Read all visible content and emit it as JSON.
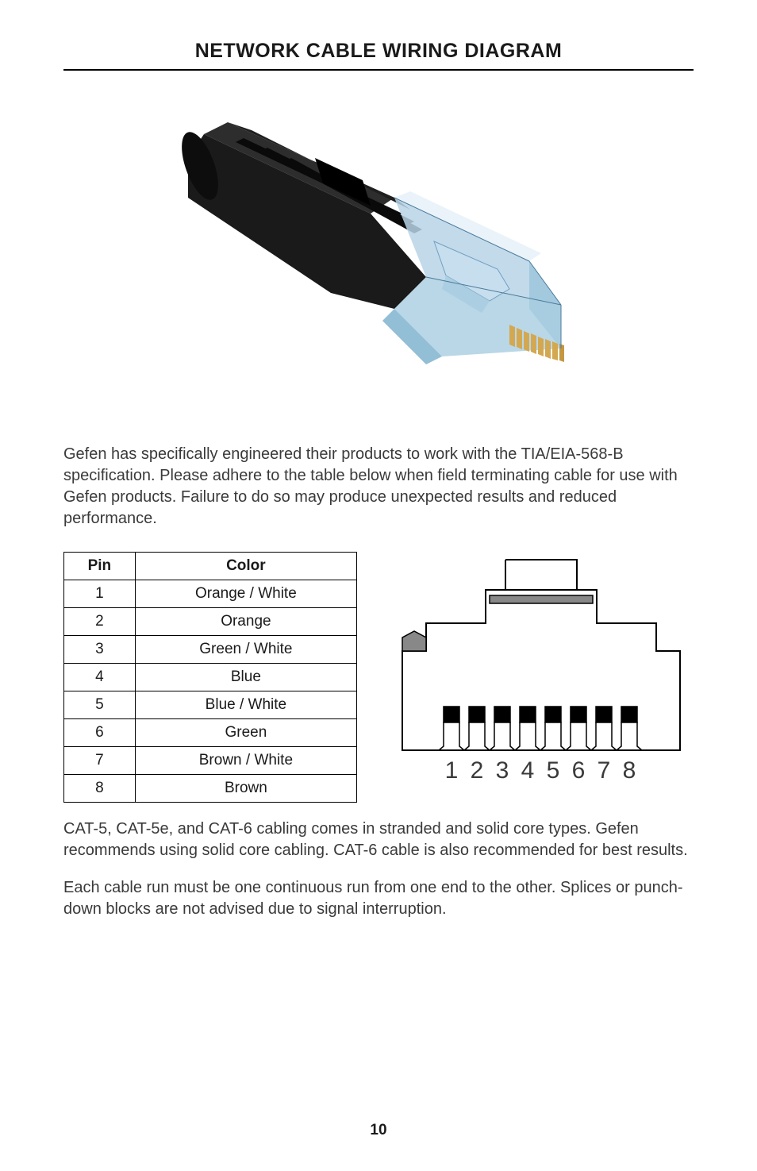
{
  "title": "NETWORK CABLE WIRING DIAGRAM",
  "intro_text": "Gefen has specifically engineered their products to work with the TIA/EIA-568-B specification.  Please adhere to the table below when field terminating cable for use with Gefen products. Failure to do so may produce unexpected results and reduced performance.",
  "pin_table": {
    "headers": {
      "pin": "Pin",
      "color": "Color"
    },
    "rows": [
      {
        "pin": "1",
        "color": "Orange / White"
      },
      {
        "pin": "2",
        "color": "Orange"
      },
      {
        "pin": "3",
        "color": "Green / White"
      },
      {
        "pin": "4",
        "color": "Blue"
      },
      {
        "pin": "5",
        "color": "Blue / White"
      },
      {
        "pin": "6",
        "color": "Green"
      },
      {
        "pin": "7",
        "color": "Brown / White"
      },
      {
        "pin": "8",
        "color": "Brown"
      }
    ]
  },
  "jack_labels": [
    "1",
    "2",
    "3",
    "4",
    "5",
    "6",
    "7",
    "8"
  ],
  "footer_text1": "CAT-5, CAT-5e, and CAT-6 cabling comes in stranded and solid core types. Gefen recommends using solid core cabling. CAT-6 cable is also recommended for best results.",
  "footer_text2": "Each cable run must be one continuous run from one end to the other. Splices or punch-down blocks are not advised due to signal interruption.",
  "page_number": "10",
  "connector_diagram": {
    "type": "3d-illustration",
    "boot_color": "#1a1a1a",
    "boot_shadow": "#2d2d2d",
    "plug_body_color": "#b8d4e8",
    "plug_highlight": "#e8f2f8",
    "plug_edge": "#4a7a9a",
    "pin_colors": [
      "#d4a850",
      "#d4a850",
      "#d4a850",
      "#d4a850",
      "#d4a850",
      "#d4a850",
      "#d4a850",
      "#d4a850"
    ]
  },
  "jack_diagram": {
    "type": "line-drawing",
    "outline_color": "#000000",
    "outline_width": 2,
    "fill": "#ffffff",
    "pin_fill": "#000000",
    "label_fontsize": 30,
    "label_color": "#3a3a3a"
  }
}
